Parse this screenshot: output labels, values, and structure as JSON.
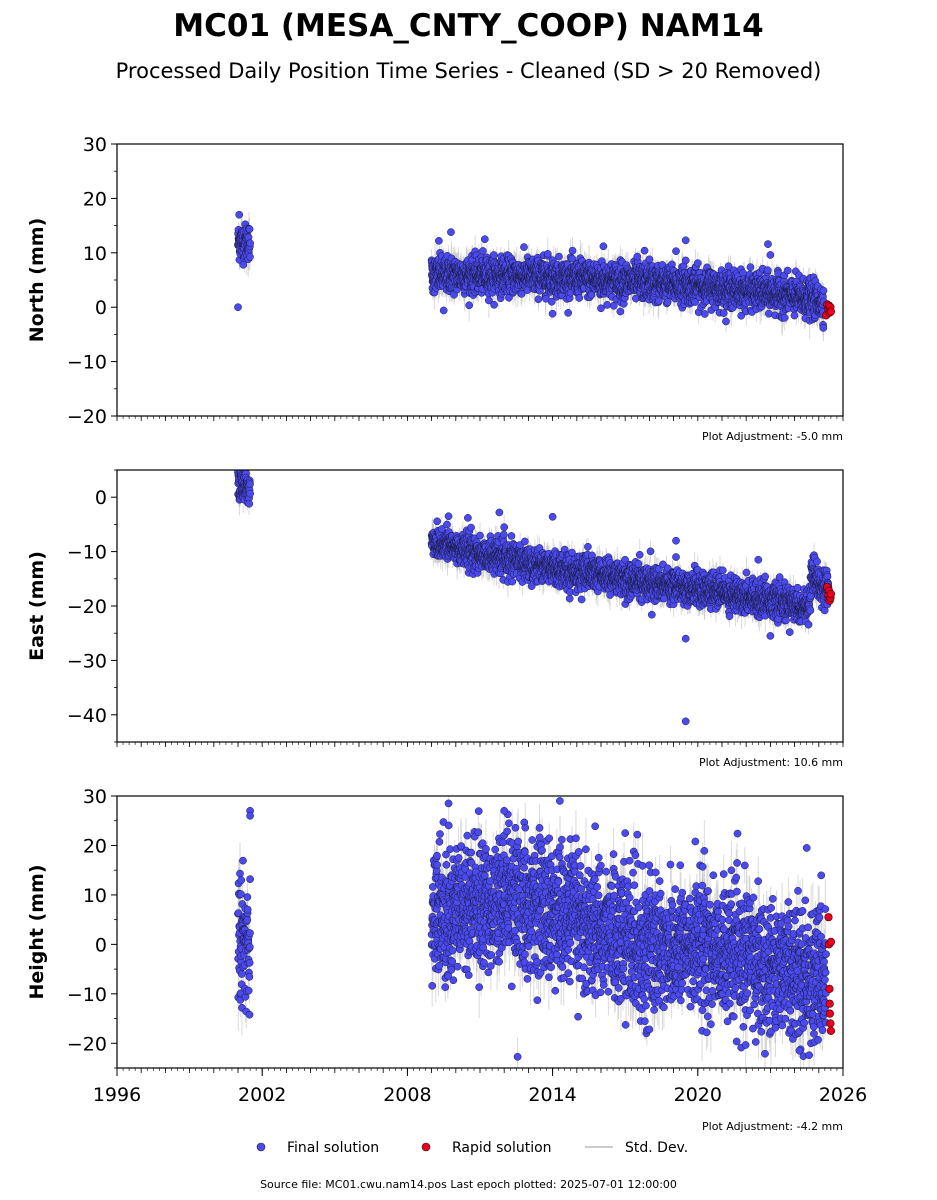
{
  "figure": {
    "title": "MC01 (MESA_CNTY_COOP) NAM14",
    "subtitle": "Processed Daily Position Time Series - Cleaned (SD > 20 Removed)",
    "footer": "Source file: MC01.cwu.nam14.pos  Last epoch plotted: 2025-07-01 12:00:00",
    "colors": {
      "final": "#4a4af0",
      "rapid": "#e8001c",
      "stddev": "#bbbbbb"
    }
  },
  "legend": {
    "placement": "bottom-center",
    "final_label": "Final solution",
    "rapid_label": "Rapid solution",
    "std_label": "Std. Dev."
  },
  "chart_data": [
    {
      "type": "scatter",
      "ylabel": "North (mm)",
      "ylim": [
        -20,
        30
      ],
      "yticks": [
        -20,
        -10,
        0,
        10,
        20,
        30
      ],
      "ytick_labels": [
        "−20",
        "−10",
        "0",
        "10",
        "20",
        "30"
      ],
      "xlim": [
        1996,
        2026
      ],
      "adjustment": "Plot Adjustment: -5.0 mm",
      "trend": [
        [
          2001.0,
          12.0
        ],
        [
          2001.5,
          12.0
        ],
        [
          2009.0,
          6.0
        ],
        [
          2013.0,
          5.8
        ],
        [
          2017.0,
          4.8
        ],
        [
          2020.0,
          3.9
        ],
        [
          2023.0,
          2.6
        ],
        [
          2025.2,
          1.0
        ]
      ],
      "spread": 1.6,
      "sd": 2.5,
      "outliers": [
        [
          2001.05,
          17.0
        ],
        [
          2001.0,
          0.0
        ],
        [
          2009.3,
          12.2
        ],
        [
          2009.8,
          13.8
        ],
        [
          2009.5,
          -0.6
        ],
        [
          2011.2,
          12.5
        ],
        [
          2013.8,
          9.8
        ],
        [
          2014.0,
          -1.2
        ],
        [
          2016.1,
          11.2
        ],
        [
          2016.0,
          -0.2
        ],
        [
          2016.8,
          -0.8
        ],
        [
          2019.5,
          12.3
        ],
        [
          2019.5,
          8.6
        ],
        [
          2019.1,
          10.3
        ],
        [
          2022.9,
          11.6
        ],
        [
          2023.0,
          9.6
        ],
        [
          2017.5,
          9.3
        ],
        [
          2017.8,
          10.4
        ],
        [
          2018.0,
          8.8
        ]
      ],
      "rapid": [
        [
          2025.3,
          -1.5
        ],
        [
          2025.35,
          0.5
        ],
        [
          2025.4,
          -0.5
        ],
        [
          2025.42,
          0.3
        ],
        [
          2025.45,
          -1.0
        ],
        [
          2025.48,
          0.0
        ],
        [
          2025.5,
          -0.8
        ]
      ]
    },
    {
      "type": "scatter",
      "ylabel": "East (mm)",
      "ylim": [
        -45,
        5
      ],
      "yticks": [
        -40,
        -30,
        -20,
        -10,
        0
      ],
      "ytick_labels": [
        "−40",
        "−30",
        "−20",
        "−10",
        "0"
      ],
      "xlim": [
        1996,
        2026
      ],
      "adjustment": "Plot Adjustment: 10.6 mm",
      "trend": [
        [
          2001.0,
          2.5
        ],
        [
          2001.5,
          1.5
        ],
        [
          2009.0,
          -8.0
        ],
        [
          2011.0,
          -10.5
        ],
        [
          2013.0,
          -12.0
        ],
        [
          2015.0,
          -13.8
        ],
        [
          2017.0,
          -15.0
        ],
        [
          2019.0,
          -16.2
        ],
        [
          2021.0,
          -17.5
        ],
        [
          2023.0,
          -18.8
        ],
        [
          2024.6,
          -20.5
        ],
        [
          2024.7,
          -14.5
        ],
        [
          2025.4,
          -17.0
        ]
      ],
      "spread": 1.5,
      "sd": 2.2,
      "outliers": [
        [
          2009.7,
          -3.5
        ],
        [
          2010.5,
          -3.8
        ],
        [
          2011.8,
          -2.8
        ],
        [
          2014.0,
          -3.6
        ],
        [
          2019.5,
          -26.0
        ],
        [
          2019.5,
          -41.2
        ],
        [
          2019.1,
          -8.0
        ],
        [
          2019.1,
          -11.0
        ],
        [
          2018.1,
          -21.6
        ],
        [
          2022.5,
          -11.5
        ],
        [
          2023.0,
          -25.5
        ],
        [
          2023.8,
          -24.8
        ],
        [
          2015.2,
          -18.8
        ]
      ],
      "rapid": [
        [
          2025.35,
          -16.5
        ],
        [
          2025.4,
          -18.0
        ],
        [
          2025.42,
          -17.2
        ],
        [
          2025.45,
          -19.0
        ],
        [
          2025.48,
          -18.5
        ],
        [
          2025.5,
          -17.8
        ]
      ]
    },
    {
      "type": "scatter",
      "ylabel": "Height (mm)",
      "ylim": [
        -25,
        30
      ],
      "yticks": [
        -20,
        -10,
        0,
        10,
        20,
        30
      ],
      "ytick_labels": [
        "−20",
        "−10",
        "0",
        "10",
        "20",
        "30"
      ],
      "xlim": [
        1996,
        2026
      ],
      "xticks": [
        1996,
        2002,
        2008,
        2014,
        2020,
        2026
      ],
      "xtick_labels": [
        "1996",
        "2002",
        "2008",
        "2014",
        "2020",
        "2026"
      ],
      "adjustment": "Plot Adjustment: -4.2 mm",
      "trend": [
        [
          2001.0,
          0.0
        ],
        [
          2001.5,
          2.0
        ],
        [
          2009.0,
          6.0
        ],
        [
          2012.0,
          9.0
        ],
        [
          2014.0,
          7.0
        ],
        [
          2016.0,
          3.0
        ],
        [
          2018.0,
          -1.0
        ],
        [
          2020.0,
          0.0
        ],
        [
          2022.0,
          -3.0
        ],
        [
          2024.0,
          -5.0
        ],
        [
          2025.3,
          -8.0
        ]
      ],
      "spread": 6.5,
      "sd": 5.0,
      "outliers": [
        [
          2001.5,
          27.0
        ],
        [
          2001.5,
          26.0
        ],
        [
          2009.7,
          28.5
        ],
        [
          2012.0,
          27.0
        ],
        [
          2014.3,
          29.0
        ],
        [
          2017.5,
          22.2
        ],
        [
          2019.9,
          20.8
        ],
        [
          2024.5,
          19.5
        ],
        [
          2024.2,
          -21.5
        ],
        [
          2018.0,
          -17.2
        ],
        [
          2017.0,
          22.5
        ]
      ],
      "rapid": [
        [
          2025.4,
          5.5
        ],
        [
          2025.42,
          0.0
        ],
        [
          2025.44,
          -9.0
        ],
        [
          2025.45,
          -12.0
        ],
        [
          2025.46,
          -14.0
        ],
        [
          2025.48,
          -16.0
        ],
        [
          2025.5,
          -17.5
        ],
        [
          2025.5,
          0.5
        ]
      ]
    }
  ]
}
